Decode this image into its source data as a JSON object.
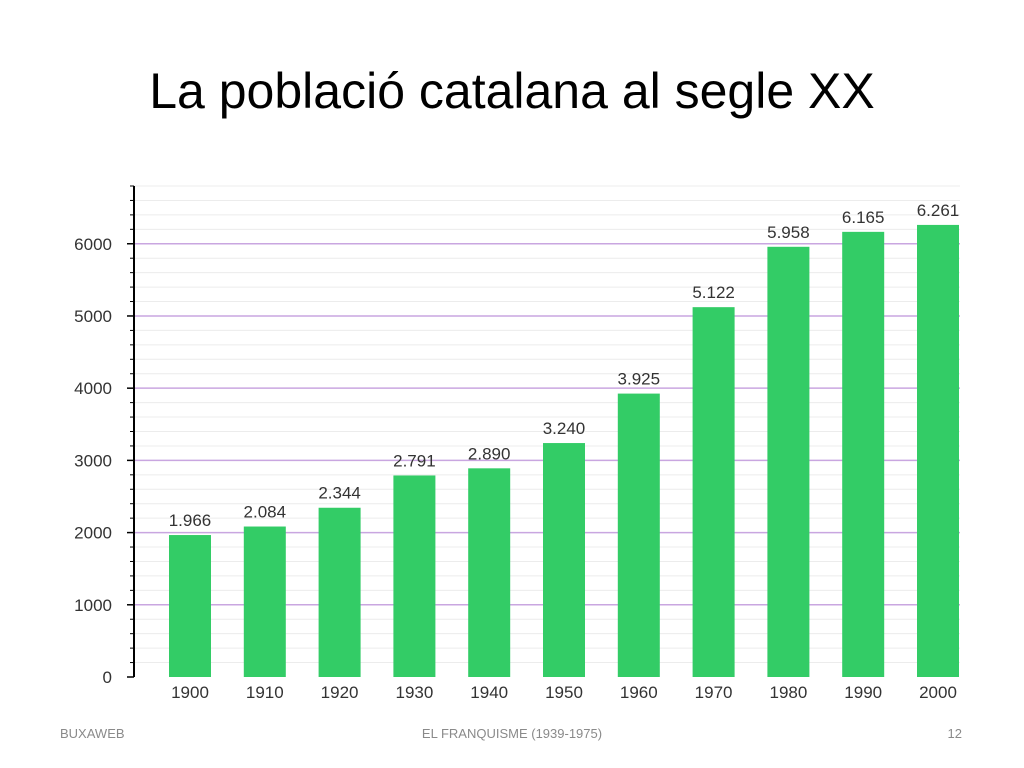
{
  "slide": {
    "title": "La població catalana al segle XX",
    "footer_left": "BUXAWEB",
    "footer_center": "EL FRANQUISME (1939-1975)",
    "footer_right": "12"
  },
  "chart_data": {
    "type": "bar",
    "categories": [
      "1900",
      "1910",
      "1920",
      "1930",
      "1940",
      "1950",
      "1960",
      "1970",
      "1980",
      "1990",
      "2000"
    ],
    "values": [
      1966,
      2084,
      2344,
      2791,
      2890,
      3240,
      3925,
      5122,
      5958,
      6165,
      6261
    ],
    "value_labels": [
      "1.966",
      "2.084",
      "2.344",
      "2.791",
      "2.890",
      "3.240",
      "3.925",
      "5.122",
      "5.958",
      "6.165",
      "6.261"
    ],
    "y_ticks": [
      0,
      1000,
      2000,
      3000,
      4000,
      5000,
      6000
    ],
    "ylim": [
      0,
      6800
    ],
    "grid": true,
    "colors": {
      "bar": "#33cc66",
      "grid_major": "#c9a6e0",
      "grid_minor": "#ececec",
      "axis": "#000000",
      "text": "#333333"
    }
  }
}
